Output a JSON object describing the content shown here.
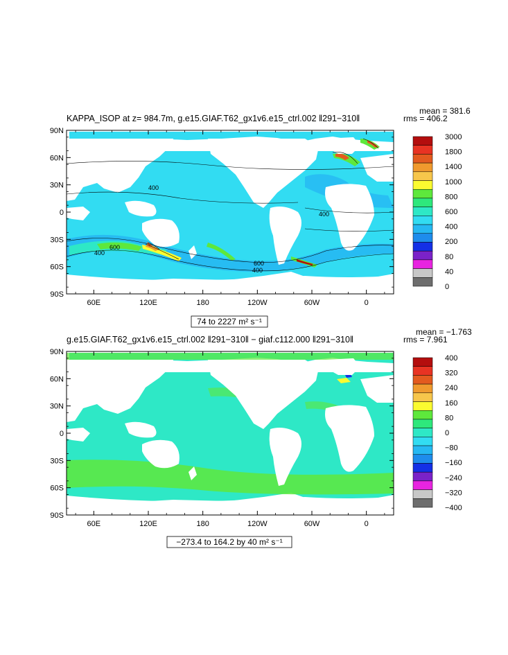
{
  "panels": [
    {
      "title": "KAPPA_ISOP at z= 984.7m, g.e15.GIAF.T62_gx1v6.e15_ctrl.002 ‖291−310‖",
      "mean": "mean = 381.6",
      "rms": "rms = 406.2",
      "range_label": "74 to 2227 m² s⁻¹",
      "lat_ticks": [
        "90N",
        "60N",
        "30N",
        "0",
        "30S",
        "60S",
        "90S"
      ],
      "lon_ticks": [
        "60E",
        "120E",
        "180",
        "120W",
        "60W",
        "0"
      ],
      "contour_labels": [
        "400",
        "600",
        "400",
        "400",
        "400",
        "600"
      ],
      "colorbar": {
        "labels": [
          "3000",
          "1800",
          "1400",
          "1000",
          "800",
          "600",
          "400",
          "200",
          "80",
          "40",
          "0"
        ],
        "colors": [
          "#b40e0e",
          "#e83323",
          "#e35a1f",
          "#f09a2e",
          "#f7c64b",
          "#fbfb30",
          "#5ee83c",
          "#2ee87c",
          "#2ee8c6",
          "#32dcf2",
          "#26b8f2",
          "#1e8cec",
          "#1430e6",
          "#7b22c8",
          "#e824e0",
          "#c8c8c8",
          "#6e6e6e"
        ]
      }
    },
    {
      "title": "g.e15.GIAF.T62_gx1v6.e15_ctrl.002 ‖291−310‖ − giaf.c112.000 ‖291−310‖",
      "mean": "mean = −1.763",
      "rms": "rms = 7.961",
      "range_label": "−273.4 to 164.2 by 40 m² s⁻¹",
      "lat_ticks": [
        "90N",
        "60N",
        "30N",
        "0",
        "30S",
        "60S",
        "90S"
      ],
      "lon_ticks": [
        "60E",
        "120E",
        "180",
        "120W",
        "60W",
        "0"
      ],
      "colorbar": {
        "labels": [
          "400",
          "320",
          "240",
          "160",
          "80",
          "0",
          "−80",
          "−160",
          "−240",
          "−320",
          "−400"
        ],
        "colors": [
          "#b40e0e",
          "#e83323",
          "#e35a1f",
          "#f09a2e",
          "#f7c64b",
          "#fbfb30",
          "#5ee83c",
          "#2ee87c",
          "#2ee8c6",
          "#32dcf2",
          "#26b8f2",
          "#1e8cec",
          "#1430e6",
          "#7b22c8",
          "#e824e0",
          "#c8c8c8",
          "#6e6e6e"
        ]
      }
    }
  ],
  "colors": {
    "ocean_top": "#32dcf2",
    "ocean_top_dark": "#26b8f2",
    "ocean_bottom": "#2ee8c6",
    "ocean_bottom_green": "#5ee83c",
    "land": "#ffffff"
  }
}
